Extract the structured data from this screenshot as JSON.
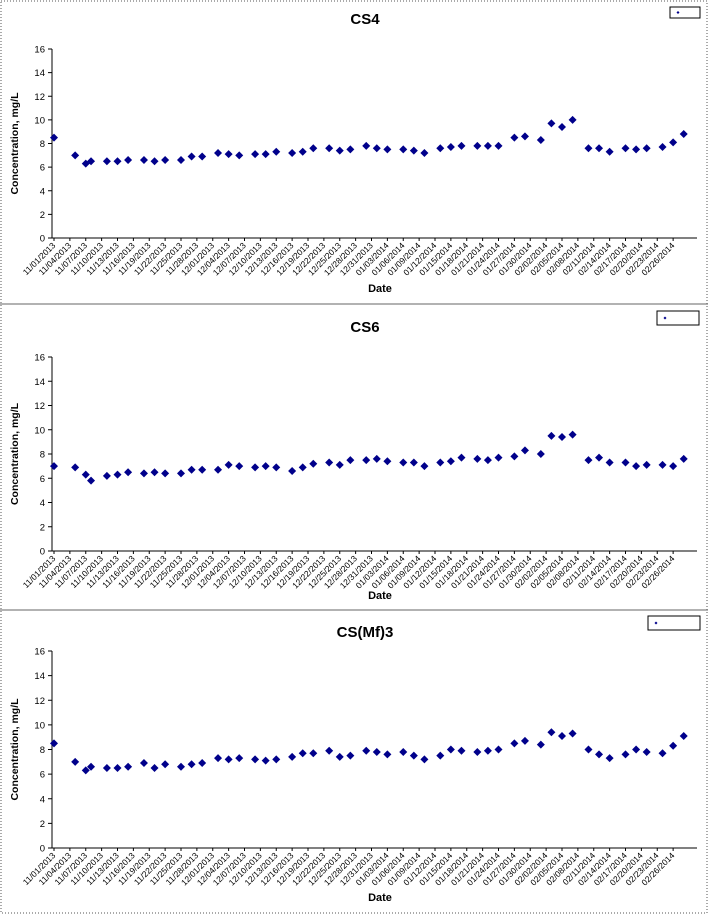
{
  "chart_data": [
    {
      "type": "scatter",
      "title": "CS4",
      "xlabel": "Date",
      "ylabel": "Concentration, mg/L",
      "ylim": [
        0,
        16
      ],
      "yticks": [
        "0",
        "2",
        "4",
        "6",
        "8",
        "10",
        "12",
        "14",
        "16"
      ],
      "legend": "top-right",
      "grid": false,
      "color": "#00008b",
      "xticks": [
        "11/01/2013",
        "11/04/2013",
        "11/07/2013",
        "11/10/2013",
        "11/13/2013",
        "11/16/2013",
        "11/19/2013",
        "11/22/2013",
        "11/25/2013",
        "11/28/2013",
        "12/01/2013",
        "12/04/2013",
        "12/07/2013",
        "12/10/2013",
        "12/13/2013",
        "12/16/2013",
        "12/19/2013",
        "12/22/2013",
        "12/25/2013",
        "12/28/2013",
        "12/31/2013",
        "01/03/2014",
        "01/06/2014",
        "01/09/2014",
        "01/12/2014",
        "01/15/2014",
        "01/18/2014",
        "01/21/2014",
        "01/24/2014",
        "01/27/2014",
        "01/30/2014",
        "02/02/2014",
        "02/05/2014",
        "02/08/2014",
        "02/11/2014",
        "02/14/2014",
        "02/17/2014",
        "02/20/2014",
        "02/23/2014",
        "02/26/2014"
      ],
      "points": [
        {
          "x": "11/01/2013",
          "y": 8.5
        },
        {
          "x": "11/05/2013",
          "y": 7.0
        },
        {
          "x": "11/07/2013",
          "y": 6.3
        },
        {
          "x": "11/08/2013",
          "y": 6.5
        },
        {
          "x": "11/11/2013",
          "y": 6.5
        },
        {
          "x": "11/13/2013",
          "y": 6.5
        },
        {
          "x": "11/15/2013",
          "y": 6.6
        },
        {
          "x": "11/18/2013",
          "y": 6.6
        },
        {
          "x": "11/20/2013",
          "y": 6.5
        },
        {
          "x": "11/22/2013",
          "y": 6.6
        },
        {
          "x": "11/25/2013",
          "y": 6.6
        },
        {
          "x": "11/27/2013",
          "y": 6.9
        },
        {
          "x": "11/29/2013",
          "y": 6.9
        },
        {
          "x": "12/02/2013",
          "y": 7.2
        },
        {
          "x": "12/04/2013",
          "y": 7.1
        },
        {
          "x": "12/06/2013",
          "y": 7.0
        },
        {
          "x": "12/09/2013",
          "y": 7.1
        },
        {
          "x": "12/11/2013",
          "y": 7.1
        },
        {
          "x": "12/13/2013",
          "y": 7.3
        },
        {
          "x": "12/16/2013",
          "y": 7.2
        },
        {
          "x": "12/18/2013",
          "y": 7.3
        },
        {
          "x": "12/20/2013",
          "y": 7.6
        },
        {
          "x": "12/23/2013",
          "y": 7.6
        },
        {
          "x": "12/25/2013",
          "y": 7.4
        },
        {
          "x": "12/27/2013",
          "y": 7.5
        },
        {
          "x": "12/30/2013",
          "y": 7.8
        },
        {
          "x": "01/01/2014",
          "y": 7.6
        },
        {
          "x": "01/03/2014",
          "y": 7.5
        },
        {
          "x": "01/06/2014",
          "y": 7.5
        },
        {
          "x": "01/08/2014",
          "y": 7.4
        },
        {
          "x": "01/10/2014",
          "y": 7.2
        },
        {
          "x": "01/13/2014",
          "y": 7.6
        },
        {
          "x": "01/15/2014",
          "y": 7.7
        },
        {
          "x": "01/17/2014",
          "y": 7.8
        },
        {
          "x": "01/20/2014",
          "y": 7.8
        },
        {
          "x": "01/22/2014",
          "y": 7.8
        },
        {
          "x": "01/24/2014",
          "y": 7.8
        },
        {
          "x": "01/27/2014",
          "y": 8.5
        },
        {
          "x": "01/29/2014",
          "y": 8.6
        },
        {
          "x": "02/01/2014",
          "y": 8.3
        },
        {
          "x": "02/03/2014",
          "y": 9.7
        },
        {
          "x": "02/05/2014",
          "y": 9.4
        },
        {
          "x": "02/07/2014",
          "y": 10.0
        },
        {
          "x": "02/10/2014",
          "y": 7.6
        },
        {
          "x": "02/12/2014",
          "y": 7.6
        },
        {
          "x": "02/14/2014",
          "y": 7.3
        },
        {
          "x": "02/17/2014",
          "y": 7.6
        },
        {
          "x": "02/19/2014",
          "y": 7.5
        },
        {
          "x": "02/21/2014",
          "y": 7.6
        },
        {
          "x": "02/24/2014",
          "y": 7.7
        },
        {
          "x": "02/26/2014",
          "y": 8.1
        },
        {
          "x": "02/28/2014",
          "y": 8.8
        }
      ]
    },
    {
      "type": "scatter",
      "title": "CS6",
      "xlabel": "Date",
      "ylabel": "Concentration, mg/L",
      "ylim": [
        0,
        16
      ],
      "yticks": [
        "0",
        "2",
        "4",
        "6",
        "8",
        "10",
        "12",
        "14",
        "16"
      ],
      "legend": "top-right",
      "grid": false,
      "color": "#00008b",
      "xticks": [
        "11/01/2013",
        "11/04/2013",
        "11/07/2013",
        "11/10/2013",
        "11/13/2013",
        "11/16/2013",
        "11/19/2013",
        "11/22/2013",
        "11/25/2013",
        "11/28/2013",
        "12/01/2013",
        "12/04/2013",
        "12/07/2013",
        "12/10/2013",
        "12/13/2013",
        "12/16/2013",
        "12/19/2013",
        "12/22/2013",
        "12/25/2013",
        "12/28/2013",
        "12/31/2013",
        "01/03/2014",
        "01/06/2014",
        "01/09/2014",
        "01/12/2014",
        "01/15/2014",
        "01/18/2014",
        "01/21/2014",
        "01/24/2014",
        "01/27/2014",
        "01/30/2014",
        "02/02/2014",
        "02/05/2014",
        "02/08/2014",
        "02/11/2014",
        "02/14/2014",
        "02/17/2014",
        "02/20/2014",
        "02/23/2014",
        "02/26/2014"
      ],
      "points": [
        {
          "x": "11/01/2013",
          "y": 7.0
        },
        {
          "x": "11/05/2013",
          "y": 6.9
        },
        {
          "x": "11/07/2013",
          "y": 6.3
        },
        {
          "x": "11/08/2013",
          "y": 5.8
        },
        {
          "x": "11/11/2013",
          "y": 6.2
        },
        {
          "x": "11/13/2013",
          "y": 6.3
        },
        {
          "x": "11/15/2013",
          "y": 6.5
        },
        {
          "x": "11/18/2013",
          "y": 6.4
        },
        {
          "x": "11/20/2013",
          "y": 6.5
        },
        {
          "x": "11/22/2013",
          "y": 6.4
        },
        {
          "x": "11/25/2013",
          "y": 6.4
        },
        {
          "x": "11/27/2013",
          "y": 6.7
        },
        {
          "x": "11/29/2013",
          "y": 6.7
        },
        {
          "x": "12/02/2013",
          "y": 6.7
        },
        {
          "x": "12/04/2013",
          "y": 7.1
        },
        {
          "x": "12/06/2013",
          "y": 7.0
        },
        {
          "x": "12/09/2013",
          "y": 6.9
        },
        {
          "x": "12/11/2013",
          "y": 7.0
        },
        {
          "x": "12/13/2013",
          "y": 6.9
        },
        {
          "x": "12/16/2013",
          "y": 6.6
        },
        {
          "x": "12/18/2013",
          "y": 6.9
        },
        {
          "x": "12/20/2013",
          "y": 7.2
        },
        {
          "x": "12/23/2013",
          "y": 7.3
        },
        {
          "x": "12/25/2013",
          "y": 7.1
        },
        {
          "x": "12/27/2013",
          "y": 7.5
        },
        {
          "x": "12/30/2013",
          "y": 7.5
        },
        {
          "x": "01/01/2014",
          "y": 7.6
        },
        {
          "x": "01/03/2014",
          "y": 7.4
        },
        {
          "x": "01/06/2014",
          "y": 7.3
        },
        {
          "x": "01/08/2014",
          "y": 7.3
        },
        {
          "x": "01/10/2014",
          "y": 7.0
        },
        {
          "x": "01/13/2014",
          "y": 7.3
        },
        {
          "x": "01/15/2014",
          "y": 7.4
        },
        {
          "x": "01/17/2014",
          "y": 7.7
        },
        {
          "x": "01/20/2014",
          "y": 7.6
        },
        {
          "x": "01/22/2014",
          "y": 7.5
        },
        {
          "x": "01/24/2014",
          "y": 7.7
        },
        {
          "x": "01/27/2014",
          "y": 7.8
        },
        {
          "x": "01/29/2014",
          "y": 8.3
        },
        {
          "x": "02/01/2014",
          "y": 8.0
        },
        {
          "x": "02/03/2014",
          "y": 9.5
        },
        {
          "x": "02/05/2014",
          "y": 9.4
        },
        {
          "x": "02/07/2014",
          "y": 9.6
        },
        {
          "x": "02/10/2014",
          "y": 7.5
        },
        {
          "x": "02/12/2014",
          "y": 7.7
        },
        {
          "x": "02/14/2014",
          "y": 7.3
        },
        {
          "x": "02/17/2014",
          "y": 7.3
        },
        {
          "x": "02/19/2014",
          "y": 7.0
        },
        {
          "x": "02/21/2014",
          "y": 7.1
        },
        {
          "x": "02/24/2014",
          "y": 7.1
        },
        {
          "x": "02/26/2014",
          "y": 7.0
        },
        {
          "x": "02/28/2014",
          "y": 7.6
        }
      ]
    },
    {
      "type": "scatter",
      "title": "CS(Mf)3",
      "xlabel": "Date",
      "ylabel": "Concentration, mg/L",
      "ylim": [
        0,
        16
      ],
      "yticks": [
        "0",
        "2",
        "4",
        "6",
        "8",
        "10",
        "12",
        "14",
        "16"
      ],
      "legend": "top-right",
      "grid": false,
      "color": "#00008b",
      "xticks": [
        "11/01/2013",
        "11/04/2013",
        "11/07/2013",
        "11/10/2013",
        "11/13/2013",
        "11/16/2013",
        "11/19/2013",
        "11/22/2013",
        "11/25/2013",
        "11/28/2013",
        "12/01/2013",
        "12/04/2013",
        "12/07/2013",
        "12/10/2013",
        "12/13/2013",
        "12/16/2013",
        "12/19/2013",
        "12/22/2013",
        "12/25/2013",
        "12/28/2013",
        "12/31/2013",
        "01/03/2014",
        "01/06/2014",
        "01/09/2014",
        "01/12/2014",
        "01/15/2014",
        "01/18/2014",
        "01/21/2014",
        "01/24/2014",
        "01/27/2014",
        "01/30/2014",
        "02/02/2014",
        "02/05/2014",
        "02/08/2014",
        "02/11/2014",
        "02/14/2014",
        "02/17/2014",
        "02/20/2014",
        "02/23/2014",
        "02/26/2014"
      ],
      "points": [
        {
          "x": "11/01/2013",
          "y": 8.5
        },
        {
          "x": "11/05/2013",
          "y": 7.0
        },
        {
          "x": "11/07/2013",
          "y": 6.3
        },
        {
          "x": "11/08/2013",
          "y": 6.6
        },
        {
          "x": "11/11/2013",
          "y": 6.5
        },
        {
          "x": "11/13/2013",
          "y": 6.5
        },
        {
          "x": "11/15/2013",
          "y": 6.6
        },
        {
          "x": "11/18/2013",
          "y": 6.9
        },
        {
          "x": "11/20/2013",
          "y": 6.5
        },
        {
          "x": "11/22/2013",
          "y": 6.8
        },
        {
          "x": "11/25/2013",
          "y": 6.6
        },
        {
          "x": "11/27/2013",
          "y": 6.8
        },
        {
          "x": "11/29/2013",
          "y": 6.9
        },
        {
          "x": "12/02/2013",
          "y": 7.3
        },
        {
          "x": "12/04/2013",
          "y": 7.2
        },
        {
          "x": "12/06/2013",
          "y": 7.3
        },
        {
          "x": "12/09/2013",
          "y": 7.2
        },
        {
          "x": "12/11/2013",
          "y": 7.1
        },
        {
          "x": "12/13/2013",
          "y": 7.2
        },
        {
          "x": "12/16/2013",
          "y": 7.4
        },
        {
          "x": "12/18/2013",
          "y": 7.7
        },
        {
          "x": "12/20/2013",
          "y": 7.7
        },
        {
          "x": "12/23/2013",
          "y": 7.9
        },
        {
          "x": "12/25/2013",
          "y": 7.4
        },
        {
          "x": "12/27/2013",
          "y": 7.5
        },
        {
          "x": "12/30/2013",
          "y": 7.9
        },
        {
          "x": "01/01/2014",
          "y": 7.8
        },
        {
          "x": "01/03/2014",
          "y": 7.6
        },
        {
          "x": "01/06/2014",
          "y": 7.8
        },
        {
          "x": "01/08/2014",
          "y": 7.5
        },
        {
          "x": "01/10/2014",
          "y": 7.2
        },
        {
          "x": "01/13/2014",
          "y": 7.5
        },
        {
          "x": "01/15/2014",
          "y": 8.0
        },
        {
          "x": "01/17/2014",
          "y": 7.9
        },
        {
          "x": "01/20/2014",
          "y": 7.8
        },
        {
          "x": "01/22/2014",
          "y": 7.9
        },
        {
          "x": "01/24/2014",
          "y": 8.0
        },
        {
          "x": "01/27/2014",
          "y": 8.5
        },
        {
          "x": "01/29/2014",
          "y": 8.7
        },
        {
          "x": "02/01/2014",
          "y": 8.4
        },
        {
          "x": "02/03/2014",
          "y": 9.4
        },
        {
          "x": "02/05/2014",
          "y": 9.1
        },
        {
          "x": "02/07/2014",
          "y": 9.3
        },
        {
          "x": "02/10/2014",
          "y": 8.0
        },
        {
          "x": "02/12/2014",
          "y": 7.6
        },
        {
          "x": "02/14/2014",
          "y": 7.3
        },
        {
          "x": "02/17/2014",
          "y": 7.6
        },
        {
          "x": "02/19/2014",
          "y": 8.0
        },
        {
          "x": "02/21/2014",
          "y": 7.8
        },
        {
          "x": "02/24/2014",
          "y": 7.7
        },
        {
          "x": "02/26/2014",
          "y": 8.3
        },
        {
          "x": "02/28/2014",
          "y": 9.1
        }
      ]
    }
  ]
}
